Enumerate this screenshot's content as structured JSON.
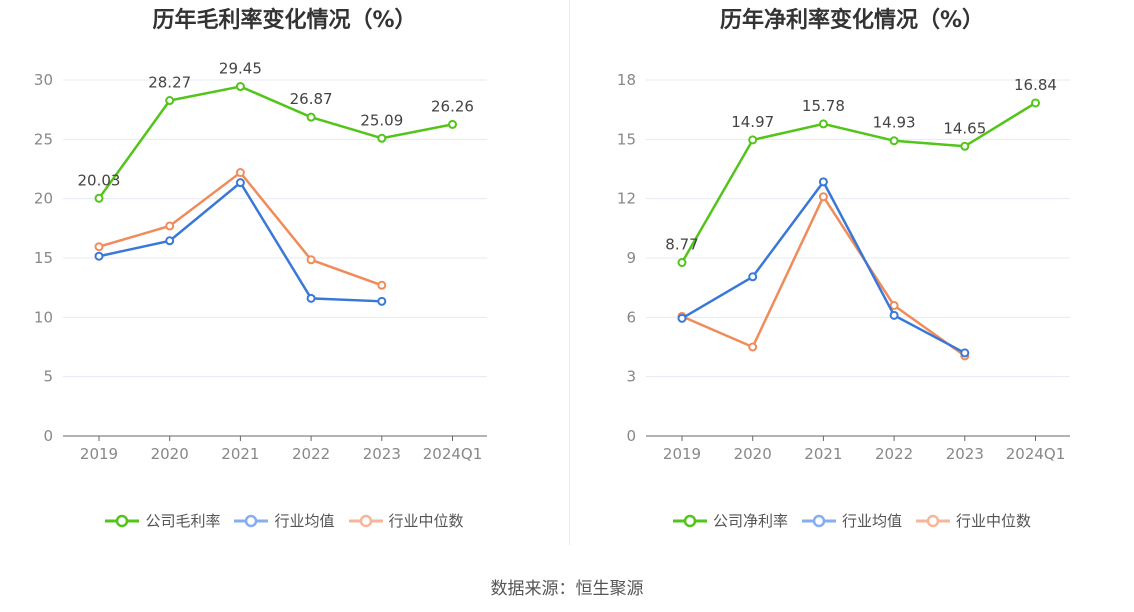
{
  "source": "数据来源：恒生聚源",
  "colors": {
    "company": "#52c41a",
    "avg": "#3a78d8",
    "median": "#f08b5a"
  },
  "legend_colors": {
    "company": "#52c41a",
    "avg": "#86adf0",
    "median": "#f7b59a"
  },
  "chart_data": [
    {
      "type": "line",
      "title": "历年毛利率变化情况（%）",
      "categories": [
        "2019",
        "2020",
        "2021",
        "2022",
        "2023",
        "2024Q1"
      ],
      "ylim": [
        0,
        30
      ],
      "yticks": [
        "0",
        "5",
        "10",
        "15",
        "20",
        "25",
        "30"
      ],
      "series": [
        {
          "name": "公司毛利率",
          "key": "company",
          "values": [
            20.03,
            28.27,
            29.45,
            26.87,
            25.09,
            26.26
          ],
          "labels": [
            "20.03",
            "28.27",
            "29.45",
            "26.87",
            "25.09",
            "26.26"
          ]
        },
        {
          "name": "行业均值",
          "key": "avg",
          "values": [
            15.15,
            16.45,
            21.35,
            11.6,
            11.35,
            null
          ]
        },
        {
          "name": "行业中位数",
          "key": "median",
          "values": [
            15.95,
            17.7,
            22.2,
            14.85,
            12.7,
            null
          ]
        }
      ]
    },
    {
      "type": "line",
      "title": "历年净利率变化情况（%）",
      "categories": [
        "2019",
        "2020",
        "2021",
        "2022",
        "2023",
        "2024Q1"
      ],
      "ylim": [
        0,
        18
      ],
      "yticks": [
        "0",
        "3",
        "6",
        "9",
        "12",
        "15",
        "18"
      ],
      "series": [
        {
          "name": "公司净利率",
          "key": "company",
          "values": [
            8.77,
            14.97,
            15.78,
            14.93,
            14.65,
            16.84
          ],
          "labels": [
            "8.77",
            "14.97",
            "15.78",
            "14.93",
            "14.65",
            "16.84"
          ]
        },
        {
          "name": "行业均值",
          "key": "avg",
          "values": [
            5.95,
            8.05,
            12.85,
            6.1,
            4.2,
            null
          ]
        },
        {
          "name": "行业中位数",
          "key": "median",
          "values": [
            6.05,
            4.5,
            12.1,
            6.6,
            4.05,
            null
          ]
        }
      ]
    }
  ]
}
